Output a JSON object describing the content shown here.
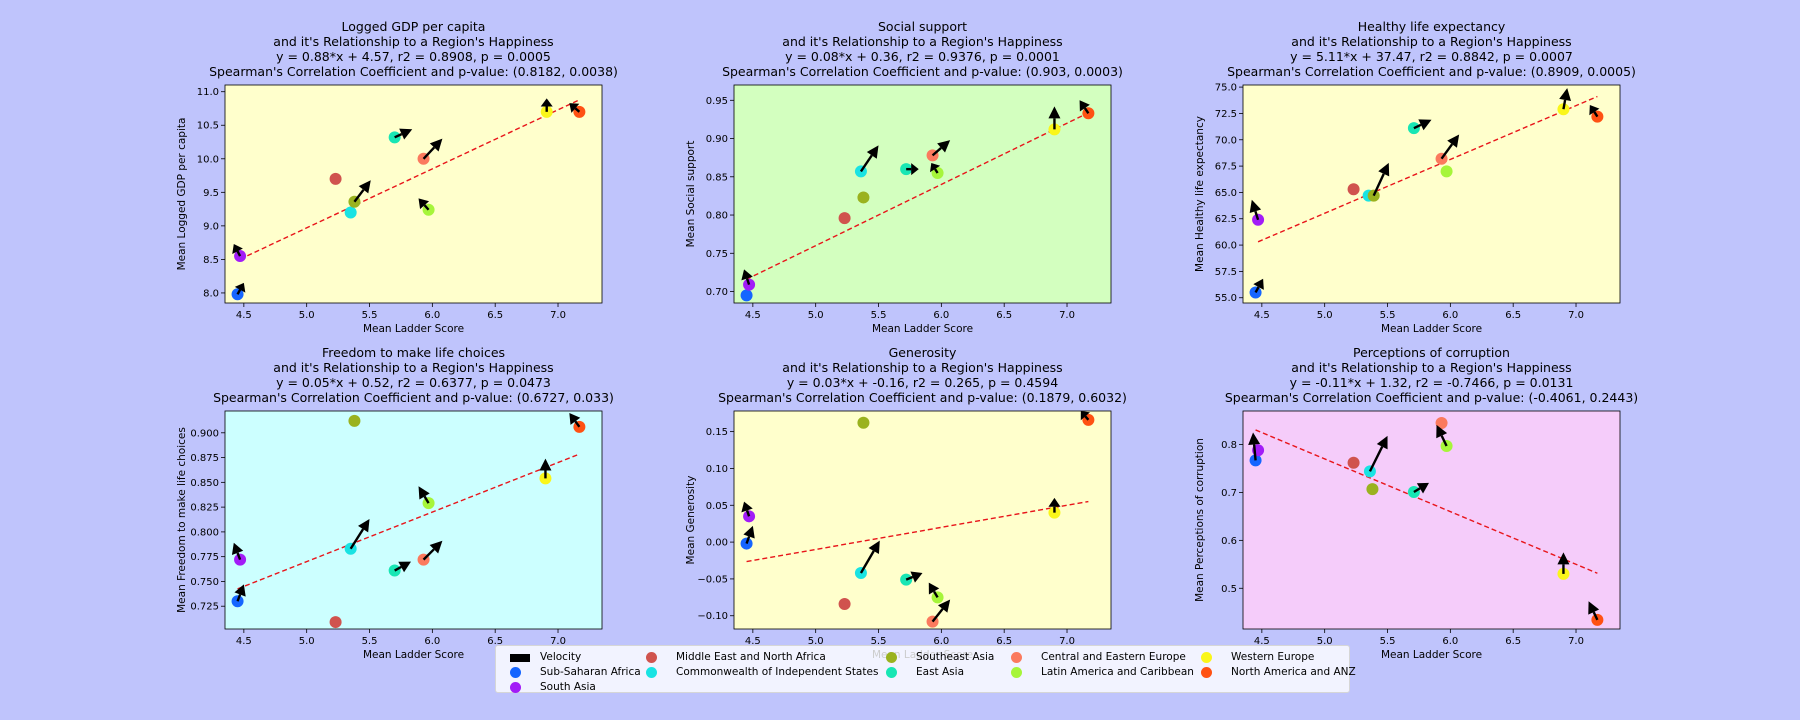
{
  "figure_background": "#bfc4fc",
  "regions": [
    {
      "name": "Sub-Saharan Africa",
      "color": "#1565ff"
    },
    {
      "name": "South Asia",
      "color": "#a21cf7"
    },
    {
      "name": "Middle East and North Africa",
      "color": "#d0534e"
    },
    {
      "name": "Commonwealth of Independent States",
      "color": "#19e3e3"
    },
    {
      "name": "Southeast Asia",
      "color": "#9ab21f"
    },
    {
      "name": "East Asia",
      "color": "#18e6b4"
    },
    {
      "name": "Central and Eastern Europe",
      "color": "#fb7a5e"
    },
    {
      "name": "Latin America and Caribbean",
      "color": "#a6f53a"
    },
    {
      "name": "Western Europe",
      "color": "#faf61a"
    },
    {
      "name": "North America and ANZ",
      "color": "#ff5113"
    }
  ],
  "legend": {
    "velocity_label": "Velocity",
    "columns": [
      [
        "Velocity",
        "Sub-Saharan Africa",
        "South Asia"
      ],
      [
        "Middle East and North Africa",
        "Commonwealth of Independent States"
      ],
      [
        "Southeast Asia",
        "East Asia"
      ],
      [
        "Central and Eastern Europe",
        "Latin America and Caribbean"
      ],
      [
        "Western Europe",
        "North America and ANZ"
      ]
    ]
  },
  "chart_data": [
    {
      "type": "scatter",
      "background": "#ffffcc",
      "title_lines": [
        "Logged GDP per capita",
        "and it's Relationship to a Region's Happiness",
        "y = 0.88*x + 4.57, r2 = 0.8908, p = 0.0005",
        "Spearman's Correlation Coefficient and p-value: (0.8182, 0.0038)"
      ],
      "xlabel": "Mean Ladder Score",
      "ylabel": "Mean Logged GDP per capita",
      "xlim": [
        4.35,
        7.35
      ],
      "ylim": [
        7.85,
        11.1
      ],
      "xticks": [
        4.5,
        5.0,
        5.5,
        6.0,
        6.5,
        7.0
      ],
      "xtick_labels": [
        "4.5",
        "5.0",
        "5.5",
        "6.0",
        "6.5",
        "7.0"
      ],
      "yticks": [
        8.0,
        8.5,
        9.0,
        9.5,
        10.0,
        10.5,
        11.0
      ],
      "ytick_labels": [
        "8.0",
        "8.5",
        "9.0",
        "9.5",
        "10.0",
        "10.5",
        "11.0"
      ],
      "trend": {
        "slope": 0.88,
        "intercept": 4.57,
        "x_range": [
          4.47,
          7.17
        ]
      },
      "points": [
        {
          "region": "Sub-Saharan Africa",
          "x": 4.45,
          "y": 7.98,
          "dx": 0.05,
          "dy": 0.17
        },
        {
          "region": "South Asia",
          "x": 4.47,
          "y": 8.55,
          "dx": -0.05,
          "dy": 0.18
        },
        {
          "region": "Middle East and North Africa",
          "x": 5.23,
          "y": 9.7,
          "dx": 0.0,
          "dy": 0.0
        },
        {
          "region": "Commonwealth of Independent States",
          "x": 5.35,
          "y": 9.2,
          "dx": 0.0,
          "dy": 0.0
        },
        {
          "region": "Southeast Asia",
          "x": 5.38,
          "y": 9.36,
          "dx": 0.13,
          "dy": 0.32
        },
        {
          "region": "East Asia",
          "x": 5.7,
          "y": 10.32,
          "dx": 0.14,
          "dy": 0.12
        },
        {
          "region": "Central and Eastern Europe",
          "x": 5.93,
          "y": 10.0,
          "dx": 0.15,
          "dy": 0.3
        },
        {
          "region": "Latin America and Caribbean",
          "x": 5.97,
          "y": 9.24,
          "dx": -0.08,
          "dy": 0.17
        },
        {
          "region": "Western Europe",
          "x": 6.91,
          "y": 10.7,
          "dx": 0.0,
          "dy": 0.2
        },
        {
          "region": "North America and ANZ",
          "x": 7.17,
          "y": 10.7,
          "dx": -0.08,
          "dy": 0.13
        }
      ]
    },
    {
      "type": "scatter",
      "background": "#d3ffbf",
      "title_lines": [
        "Social support",
        "and it's Relationship to a Region's Happiness",
        "y = 0.08*x + 0.36, r2 = 0.9376, p = 0.0001",
        "Spearman's Correlation Coefficient and p-value: (0.903, 0.0003)"
      ],
      "xlabel": "Mean Ladder Score",
      "ylabel": "Mean Social support",
      "xlim": [
        4.35,
        7.35
      ],
      "ylim": [
        0.685,
        0.97
      ],
      "xticks": [
        4.5,
        5.0,
        5.5,
        6.0,
        6.5,
        7.0
      ],
      "xtick_labels": [
        "4.5",
        "5.0",
        "5.5",
        "6.0",
        "6.5",
        "7.0"
      ],
      "yticks": [
        0.7,
        0.75,
        0.8,
        0.85,
        0.9,
        0.95
      ],
      "ytick_labels": [
        "0.70",
        "0.75",
        "0.80",
        "0.85",
        "0.90",
        "0.95"
      ],
      "trend": {
        "slope": 0.08,
        "intercept": 0.36,
        "x_range": [
          4.45,
          7.17
        ]
      },
      "points": [
        {
          "region": "Sub-Saharan Africa",
          "x": 4.45,
          "y": 0.695,
          "dx": 0.0,
          "dy": 0.0
        },
        {
          "region": "South Asia",
          "x": 4.47,
          "y": 0.709,
          "dx": -0.04,
          "dy": 0.02
        },
        {
          "region": "Middle East and North Africa",
          "x": 5.23,
          "y": 0.796,
          "dx": 0.0,
          "dy": 0.0
        },
        {
          "region": "Commonwealth of Independent States",
          "x": 5.36,
          "y": 0.857,
          "dx": 0.14,
          "dy": 0.034
        },
        {
          "region": "Southeast Asia",
          "x": 5.38,
          "y": 0.823,
          "dx": 0.0,
          "dy": 0.0
        },
        {
          "region": "East Asia",
          "x": 5.72,
          "y": 0.86,
          "dx": 0.1,
          "dy": 0.0
        },
        {
          "region": "Central and Eastern Europe",
          "x": 5.93,
          "y": 0.878,
          "dx": 0.14,
          "dy": 0.02
        },
        {
          "region": "Latin America and Caribbean",
          "x": 5.97,
          "y": 0.855,
          "dx": -0.05,
          "dy": 0.013
        },
        {
          "region": "Western Europe",
          "x": 6.9,
          "y": 0.912,
          "dx": 0.0,
          "dy": 0.03
        },
        {
          "region": "North America and ANZ",
          "x": 7.17,
          "y": 0.933,
          "dx": -0.07,
          "dy": 0.017
        }
      ]
    },
    {
      "type": "scatter",
      "background": "#ffffcc",
      "title_lines": [
        "Healthy life expectancy",
        "and it's Relationship to a Region's Happiness",
        "y = 5.11*x + 37.47, r2 = 0.8842, p = 0.0007",
        "Spearman's Correlation Coefficient and p-value: (0.8909, 0.0005)"
      ],
      "xlabel": "Mean Ladder Score",
      "ylabel": "Mean Healthy life expectancy",
      "xlim": [
        4.35,
        7.35
      ],
      "ylim": [
        54.5,
        75.2
      ],
      "xticks": [
        4.5,
        5.0,
        5.5,
        6.0,
        6.5,
        7.0
      ],
      "xtick_labels": [
        "4.5",
        "5.0",
        "5.5",
        "6.0",
        "6.5",
        "7.0"
      ],
      "yticks": [
        55.0,
        57.5,
        60.0,
        62.5,
        65.0,
        67.5,
        70.0,
        72.5,
        75.0
      ],
      "ytick_labels": [
        "55.0",
        "57.5",
        "60.0",
        "62.5",
        "65.0",
        "67.5",
        "70.0",
        "72.5",
        "75.0"
      ],
      "trend": {
        "slope": 5.11,
        "intercept": 37.47,
        "x_range": [
          4.47,
          7.17
        ]
      },
      "points": [
        {
          "region": "Sub-Saharan Africa",
          "x": 4.45,
          "y": 55.5,
          "dx": 0.06,
          "dy": 1.3
        },
        {
          "region": "South Asia",
          "x": 4.47,
          "y": 62.4,
          "dx": -0.05,
          "dy": 1.9
        },
        {
          "region": "Middle East and North Africa",
          "x": 5.23,
          "y": 65.3,
          "dx": 0.0,
          "dy": 0.0
        },
        {
          "region": "Commonwealth of Independent States",
          "x": 5.35,
          "y": 64.7,
          "dx": 0.0,
          "dy": 0.0
        },
        {
          "region": "Southeast Asia",
          "x": 5.39,
          "y": 64.7,
          "dx": 0.12,
          "dy": 3.1
        },
        {
          "region": "East Asia",
          "x": 5.71,
          "y": 71.1,
          "dx": 0.14,
          "dy": 0.8
        },
        {
          "region": "Central and Eastern Europe",
          "x": 5.93,
          "y": 68.2,
          "dx": 0.14,
          "dy": 2.3
        },
        {
          "region": "Latin America and Caribbean",
          "x": 5.97,
          "y": 67.0,
          "dx": 0.0,
          "dy": 0.0
        },
        {
          "region": "Western Europe",
          "x": 6.9,
          "y": 72.9,
          "dx": 0.03,
          "dy": 2.0
        },
        {
          "region": "North America and ANZ",
          "x": 7.17,
          "y": 72.2,
          "dx": -0.06,
          "dy": 1.1
        }
      ]
    },
    {
      "type": "scatter",
      "background": "#ccffff",
      "title_lines": [
        "Freedom to make life choices",
        "and it's Relationship to a Region's Happiness",
        "y = 0.05*x + 0.52, r2 = 0.6377, p = 0.0473",
        "Spearman's Correlation Coefficient and p-value: (0.6727, 0.033)"
      ],
      "xlabel": "Mean Ladder Score",
      "ylabel": "Mean Freedom to make life choices",
      "xlim": [
        4.35,
        7.35
      ],
      "ylim": [
        0.702,
        0.922
      ],
      "xticks": [
        4.5,
        5.0,
        5.5,
        6.0,
        6.5,
        7.0
      ],
      "xtick_labels": [
        "4.5",
        "5.0",
        "5.5",
        "6.0",
        "6.5",
        "7.0"
      ],
      "yticks": [
        0.725,
        0.75,
        0.775,
        0.8,
        0.825,
        0.85,
        0.875,
        0.9
      ],
      "ytick_labels": [
        "0.725",
        "0.750",
        "0.775",
        "0.800",
        "0.825",
        "0.850",
        "0.875",
        "0.900"
      ],
      "trend": {
        "slope": 0.05,
        "intercept": 0.52,
        "x_range": [
          4.45,
          7.17
        ]
      },
      "points": [
        {
          "region": "Sub-Saharan Africa",
          "x": 4.45,
          "y": 0.73,
          "dx": 0.05,
          "dy": 0.017
        },
        {
          "region": "South Asia",
          "x": 4.47,
          "y": 0.772,
          "dx": -0.05,
          "dy": 0.017
        },
        {
          "region": "Middle East and North Africa",
          "x": 5.23,
          "y": 0.709,
          "dx": 0.0,
          "dy": 0.0
        },
        {
          "region": "Commonwealth of Independent States",
          "x": 5.35,
          "y": 0.783,
          "dx": 0.15,
          "dy": 0.03
        },
        {
          "region": "Southeast Asia",
          "x": 5.38,
          "y": 0.912,
          "dx": 0.0,
          "dy": 0.0
        },
        {
          "region": "East Asia",
          "x": 5.7,
          "y": 0.761,
          "dx": 0.13,
          "dy": 0.009
        },
        {
          "region": "Central and Eastern Europe",
          "x": 5.93,
          "y": 0.772,
          "dx": 0.15,
          "dy": 0.019
        },
        {
          "region": "Latin America and Caribbean",
          "x": 5.97,
          "y": 0.829,
          "dx": -0.08,
          "dy": 0.017
        },
        {
          "region": "Western Europe",
          "x": 6.9,
          "y": 0.854,
          "dx": 0.0,
          "dy": 0.02
        },
        {
          "region": "North America and ANZ",
          "x": 7.17,
          "y": 0.906,
          "dx": -0.08,
          "dy": 0.014
        }
      ]
    },
    {
      "type": "scatter",
      "background": "#ffffcc",
      "title_lines": [
        "Generosity",
        "and it's Relationship to a Region's Happiness",
        "y = 0.03*x + -0.16, r2 = 0.265, p = 0.4594",
        "Spearman's Correlation Coefficient and p-value: (0.1879, 0.6032)"
      ],
      "xlabel": "Mean Ladder Score",
      "ylabel": "Mean Generosity",
      "xlim": [
        4.35,
        7.35
      ],
      "ylim": [
        -0.118,
        0.178
      ],
      "xticks": [
        4.5,
        5.0,
        5.5,
        6.0,
        6.5,
        7.0
      ],
      "xtick_labels": [
        "4.5",
        "5.0",
        "5.5",
        "6.0",
        "6.5",
        "7.0"
      ],
      "yticks": [
        -0.1,
        -0.05,
        0.0,
        0.05,
        0.1,
        0.15
      ],
      "ytick_labels": [
        "−0.10",
        "−0.05",
        "0.00",
        "0.05",
        "0.10",
        "0.15"
      ],
      "trend": {
        "slope": 0.03,
        "intercept": -0.16,
        "x_range": [
          4.45,
          7.17
        ]
      },
      "points": [
        {
          "region": "Sub-Saharan Africa",
          "x": 4.45,
          "y": -0.002,
          "dx": 0.05,
          "dy": 0.024
        },
        {
          "region": "South Asia",
          "x": 4.47,
          "y": 0.035,
          "dx": -0.04,
          "dy": 0.02
        },
        {
          "region": "Middle East and North Africa",
          "x": 5.23,
          "y": -0.084,
          "dx": 0.0,
          "dy": 0.0
        },
        {
          "region": "Commonwealth of Independent States",
          "x": 5.36,
          "y": -0.042,
          "dx": 0.15,
          "dy": 0.044
        },
        {
          "region": "Southeast Asia",
          "x": 5.38,
          "y": 0.162,
          "dx": 0.0,
          "dy": 0.0
        },
        {
          "region": "East Asia",
          "x": 5.72,
          "y": -0.051,
          "dx": 0.13,
          "dy": 0.009
        },
        {
          "region": "Central and Eastern Europe",
          "x": 5.93,
          "y": -0.108,
          "dx": 0.14,
          "dy": 0.03
        },
        {
          "region": "Latin America and Caribbean",
          "x": 5.97,
          "y": -0.075,
          "dx": -0.07,
          "dy": 0.02
        },
        {
          "region": "Western Europe",
          "x": 6.9,
          "y": 0.04,
          "dx": 0.0,
          "dy": 0.02
        },
        {
          "region": "North America and ANZ",
          "x": 7.17,
          "y": 0.166,
          "dx": -0.06,
          "dy": 0.012
        }
      ]
    },
    {
      "type": "scatter",
      "background": "#f5ccfa",
      "title_lines": [
        "Perceptions of corruption",
        "and it's Relationship to a Region's Happiness",
        "y = -0.11*x + 1.32, r2 = -0.7466, p = 0.0131",
        "Spearman's Correlation Coefficient and p-value: (-0.4061, 0.2443)"
      ],
      "xlabel": "Mean Ladder Score",
      "ylabel": "Mean Perceptions of corruption",
      "xlim": [
        4.35,
        7.35
      ],
      "ylim": [
        0.415,
        0.87
      ],
      "xticks": [
        4.5,
        5.0,
        5.5,
        6.0,
        6.5,
        7.0
      ],
      "xtick_labels": [
        "4.5",
        "5.0",
        "5.5",
        "6.0",
        "6.5",
        "7.0"
      ],
      "yticks": [
        0.5,
        0.6,
        0.7,
        0.8
      ],
      "ytick_labels": [
        "0.5",
        "0.6",
        "0.7",
        "0.8"
      ],
      "trend": {
        "slope": -0.11,
        "intercept": 1.32,
        "x_range": [
          4.45,
          7.17
        ]
      },
      "points": [
        {
          "region": "Sub-Saharan Africa",
          "x": 4.45,
          "y": 0.767,
          "dx": -0.02,
          "dy": 0.058
        },
        {
          "region": "South Asia",
          "x": 4.47,
          "y": 0.788,
          "dx": 0.0,
          "dy": 0.0
        },
        {
          "region": "Middle East and North Africa",
          "x": 5.23,
          "y": 0.762,
          "dx": 0.0,
          "dy": 0.0
        },
        {
          "region": "Commonwealth of Independent States",
          "x": 5.36,
          "y": 0.744,
          "dx": 0.14,
          "dy": 0.074
        },
        {
          "region": "Southeast Asia",
          "x": 5.38,
          "y": 0.707,
          "dx": 0.0,
          "dy": 0.0
        },
        {
          "region": "East Asia",
          "x": 5.71,
          "y": 0.701,
          "dx": 0.12,
          "dy": 0.019
        },
        {
          "region": "Central and Eastern Europe",
          "x": 5.93,
          "y": 0.845,
          "dx": 0.0,
          "dy": 0.0
        },
        {
          "region": "Latin America and Caribbean",
          "x": 5.97,
          "y": 0.797,
          "dx": -0.08,
          "dy": 0.044
        },
        {
          "region": "Western Europe",
          "x": 6.9,
          "y": 0.53,
          "dx": 0.0,
          "dy": 0.045
        },
        {
          "region": "North America and ANZ",
          "x": 7.17,
          "y": 0.434,
          "dx": -0.07,
          "dy": 0.039
        }
      ]
    }
  ]
}
